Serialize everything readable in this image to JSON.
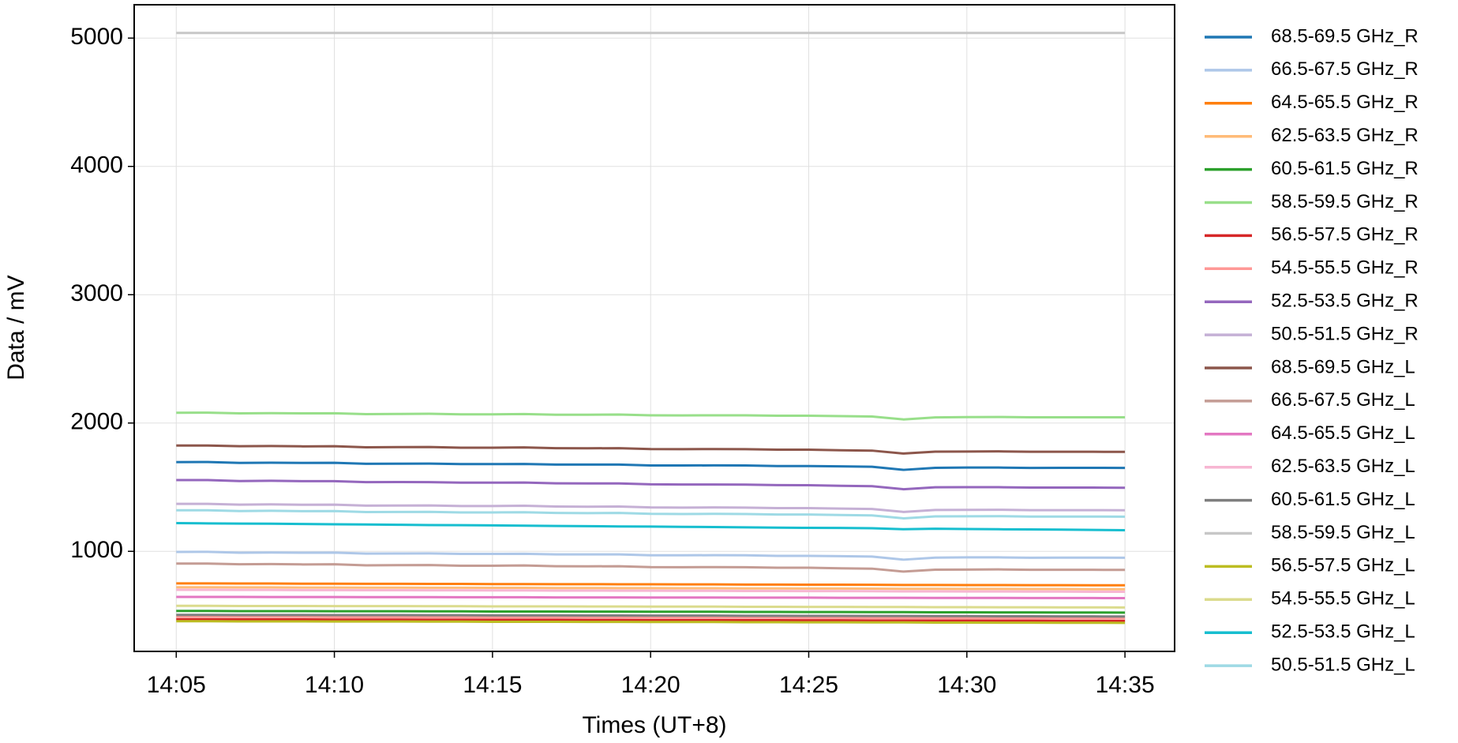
{
  "chart_data": {
    "type": "line",
    "xlabel": "Times (UT+8)",
    "ylabel": "Data / mV",
    "x": [
      "14:05",
      null,
      null,
      null,
      null,
      "14:10",
      null,
      null,
      null,
      null,
      "14:15",
      null,
      null,
      null,
      null,
      "14:20",
      null,
      null,
      null,
      null,
      "14:25",
      null,
      null,
      null,
      null,
      "14:30",
      null,
      null,
      null,
      null,
      "14:35"
    ],
    "ylim": [
      220,
      5260
    ],
    "yticks": [
      1000,
      2000,
      3000,
      4000,
      5000
    ],
    "grid": true,
    "legend": "outside-right",
    "series": [
      {
        "name": "68.5-69.5 GHz_R",
        "color": "#1f77b4",
        "values": [
          1695,
          1696,
          1689,
          1691,
          1689,
          1690,
          1682,
          1683,
          1684,
          1680,
          1680,
          1681,
          1676,
          1676,
          1676,
          1669,
          1669,
          1670,
          1669,
          1665,
          1665,
          1662,
          1659,
          1635,
          1651,
          1653,
          1653,
          1650,
          1651,
          1651,
          1650
        ]
      },
      {
        "name": "66.5-67.5 GHz_R",
        "color": "#aec7e8",
        "values": [
          995,
          996,
          989,
          991,
          989,
          990,
          982,
          983,
          984,
          980,
          980,
          981,
          976,
          976,
          976,
          969,
          969,
          970,
          969,
          965,
          965,
          962,
          959,
          935,
          951,
          953,
          953,
          950,
          951,
          951,
          950
        ]
      },
      {
        "name": "64.5-65.5 GHz_R",
        "color": "#ff7f0e",
        "values": [
          750,
          750,
          749,
          749,
          748,
          748,
          747,
          747,
          746,
          746,
          745,
          745,
          744,
          744,
          743,
          743,
          742,
          742,
          741,
          741,
          740,
          740,
          739,
          738,
          738,
          737,
          737,
          736,
          736,
          735,
          735
        ]
      },
      {
        "name": "62.5-63.5 GHz_R",
        "color": "#ffbb78",
        "values": [
          720,
          720,
          719,
          719,
          718,
          718,
          717,
          717,
          716,
          716,
          715,
          715,
          714,
          714,
          713,
          713,
          712,
          712,
          711,
          711,
          710,
          710,
          709,
          708,
          708,
          707,
          707,
          706,
          706,
          705,
          705
        ]
      },
      {
        "name": "60.5-61.5 GHz_R",
        "color": "#2ca02c",
        "values": [
          535,
          535,
          534,
          534,
          534,
          533,
          533,
          533,
          532,
          532,
          531,
          531,
          531,
          530,
          530,
          529,
          529,
          529,
          528,
          528,
          527,
          527,
          526,
          526,
          525,
          525,
          524,
          524,
          523,
          523,
          522
        ]
      },
      {
        "name": "58.5-59.5 GHz_R",
        "color": "#98df8a",
        "values": [
          2080,
          2081,
          2075,
          2077,
          2075,
          2076,
          2069,
          2071,
          2072,
          2068,
          2068,
          2070,
          2065,
          2065,
          2066,
          2060,
          2059,
          2060,
          2060,
          2057,
          2057,
          2054,
          2051,
          2028,
          2044,
          2046,
          2047,
          2045,
          2045,
          2045,
          2045
        ]
      },
      {
        "name": "56.5-57.5 GHz_R",
        "color": "#d62728",
        "values": [
          470,
          470,
          469,
          469,
          469,
          468,
          468,
          468,
          467,
          467,
          466,
          466,
          466,
          465,
          465,
          464,
          464,
          464,
          463,
          463,
          462,
          462,
          461,
          461,
          460,
          460,
          459,
          459,
          458,
          458,
          457
        ]
      },
      {
        "name": "54.5-55.5 GHz_R",
        "color": "#ff9896",
        "values": [
          490,
          490,
          489,
          489,
          489,
          488,
          488,
          488,
          487,
          487,
          486,
          486,
          486,
          485,
          485,
          484,
          484,
          484,
          483,
          483,
          482,
          482,
          481,
          481,
          480,
          480,
          479,
          479,
          478,
          478,
          477
        ]
      },
      {
        "name": "52.5-53.5 GHz_R",
        "color": "#9467bd",
        "values": [
          1555,
          1555,
          1548,
          1550,
          1547,
          1547,
          1539,
          1540,
          1539,
          1535,
          1535,
          1536,
          1530,
          1529,
          1529,
          1522,
          1521,
          1521,
          1520,
          1516,
          1515,
          1511,
          1508,
          1484,
          1499,
          1500,
          1500,
          1497,
          1497,
          1497,
          1495
        ]
      },
      {
        "name": "50.5-51.5 GHz_R",
        "color": "#c5b0d5",
        "values": [
          1370,
          1370,
          1364,
          1366,
          1363,
          1364,
          1356,
          1357,
          1358,
          1353,
          1353,
          1355,
          1349,
          1348,
          1349,
          1342,
          1341,
          1342,
          1341,
          1337,
          1337,
          1333,
          1330,
          1307,
          1322,
          1323,
          1324,
          1321,
          1321,
          1321,
          1320
        ]
      },
      {
        "name": "68.5-69.5 GHz_L",
        "color": "#8c564b",
        "values": [
          1825,
          1825,
          1819,
          1821,
          1818,
          1819,
          1811,
          1812,
          1813,
          1808,
          1808,
          1810,
          1804,
          1803,
          1804,
          1797,
          1796,
          1797,
          1796,
          1792,
          1792,
          1788,
          1785,
          1762,
          1777,
          1778,
          1779,
          1776,
          1776,
          1776,
          1775
        ]
      },
      {
        "name": "66.5-67.5 GHz_L",
        "color": "#c49c94",
        "values": [
          905,
          905,
          899,
          901,
          898,
          899,
          891,
          892,
          893,
          888,
          888,
          890,
          884,
          883,
          884,
          877,
          876,
          877,
          876,
          872,
          872,
          868,
          865,
          842,
          857,
          858,
          859,
          856,
          856,
          856,
          855
        ]
      },
      {
        "name": "64.5-65.5 GHz_L",
        "color": "#e377c2",
        "values": [
          645,
          645,
          645,
          644,
          644,
          644,
          643,
          643,
          643,
          642,
          642,
          642,
          641,
          641,
          641,
          640,
          640,
          640,
          639,
          639,
          639,
          638,
          638,
          638,
          637,
          637,
          637,
          636,
          636,
          636,
          635
        ]
      },
      {
        "name": "62.5-63.5 GHz_L",
        "color": "#f7b6d2",
        "values": [
          700,
          700,
          699,
          699,
          698,
          698,
          697,
          697,
          696,
          696,
          695,
          695,
          694,
          694,
          693,
          693,
          692,
          692,
          691,
          691,
          690,
          690,
          689,
          688,
          688,
          687,
          687,
          686,
          686,
          685,
          685
        ]
      },
      {
        "name": "60.5-61.5 GHz_L",
        "color": "#7f7f7f",
        "values": [
          505,
          505,
          504,
          504,
          504,
          503,
          503,
          503,
          502,
          502,
          501,
          501,
          501,
          500,
          500,
          499,
          499,
          499,
          498,
          498,
          497,
          497,
          496,
          496,
          495,
          495,
          494,
          494,
          493,
          493,
          492
        ]
      },
      {
        "name": "58.5-59.5 GHz_L",
        "color": "#c7c7c7",
        "values": [
          5040,
          5040,
          5040,
          5040,
          5040,
          5040,
          5040,
          5040,
          5040,
          5040,
          5040,
          5040,
          5040,
          5040,
          5040,
          5040,
          5040,
          5040,
          5040,
          5040,
          5040,
          5040,
          5040,
          5040,
          5040,
          5040,
          5040,
          5040,
          5040,
          5040,
          5040
        ]
      },
      {
        "name": "56.5-57.5 GHz_L",
        "color": "#bcbd22",
        "values": [
          455,
          455,
          454,
          454,
          454,
          453,
          453,
          453,
          452,
          452,
          451,
          451,
          451,
          450,
          450,
          449,
          449,
          449,
          448,
          448,
          447,
          447,
          446,
          446,
          445,
          445,
          444,
          444,
          443,
          443,
          442
        ]
      },
      {
        "name": "54.5-55.5 GHz_L",
        "color": "#dbdb8d",
        "values": [
          575,
          575,
          574,
          574,
          574,
          573,
          573,
          573,
          572,
          572,
          571,
          571,
          571,
          570,
          570,
          569,
          569,
          569,
          568,
          568,
          567,
          567,
          566,
          566,
          565,
          565,
          564,
          564,
          563,
          563,
          562
        ]
      },
      {
        "name": "52.5-53.5 GHz_L",
        "color": "#17becf",
        "values": [
          1220,
          1218,
          1216,
          1215,
          1213,
          1211,
          1209,
          1207,
          1205,
          1204,
          1202,
          1200,
          1198,
          1196,
          1194,
          1193,
          1191,
          1189,
          1187,
          1185,
          1183,
          1182,
          1180,
          1172,
          1176,
          1174,
          1172,
          1171,
          1169,
          1167,
          1165
        ]
      },
      {
        "name": "50.5-51.5 GHz_L",
        "color": "#9edae5",
        "values": [
          1320,
          1320,
          1314,
          1316,
          1313,
          1314,
          1306,
          1307,
          1308,
          1303,
          1303,
          1305,
          1299,
          1298,
          1299,
          1292,
          1291,
          1292,
          1291,
          1287,
          1287,
          1283,
          1280,
          1257,
          1272,
          1273,
          1274,
          1271,
          1271,
          1271,
          1270
        ]
      }
    ]
  }
}
